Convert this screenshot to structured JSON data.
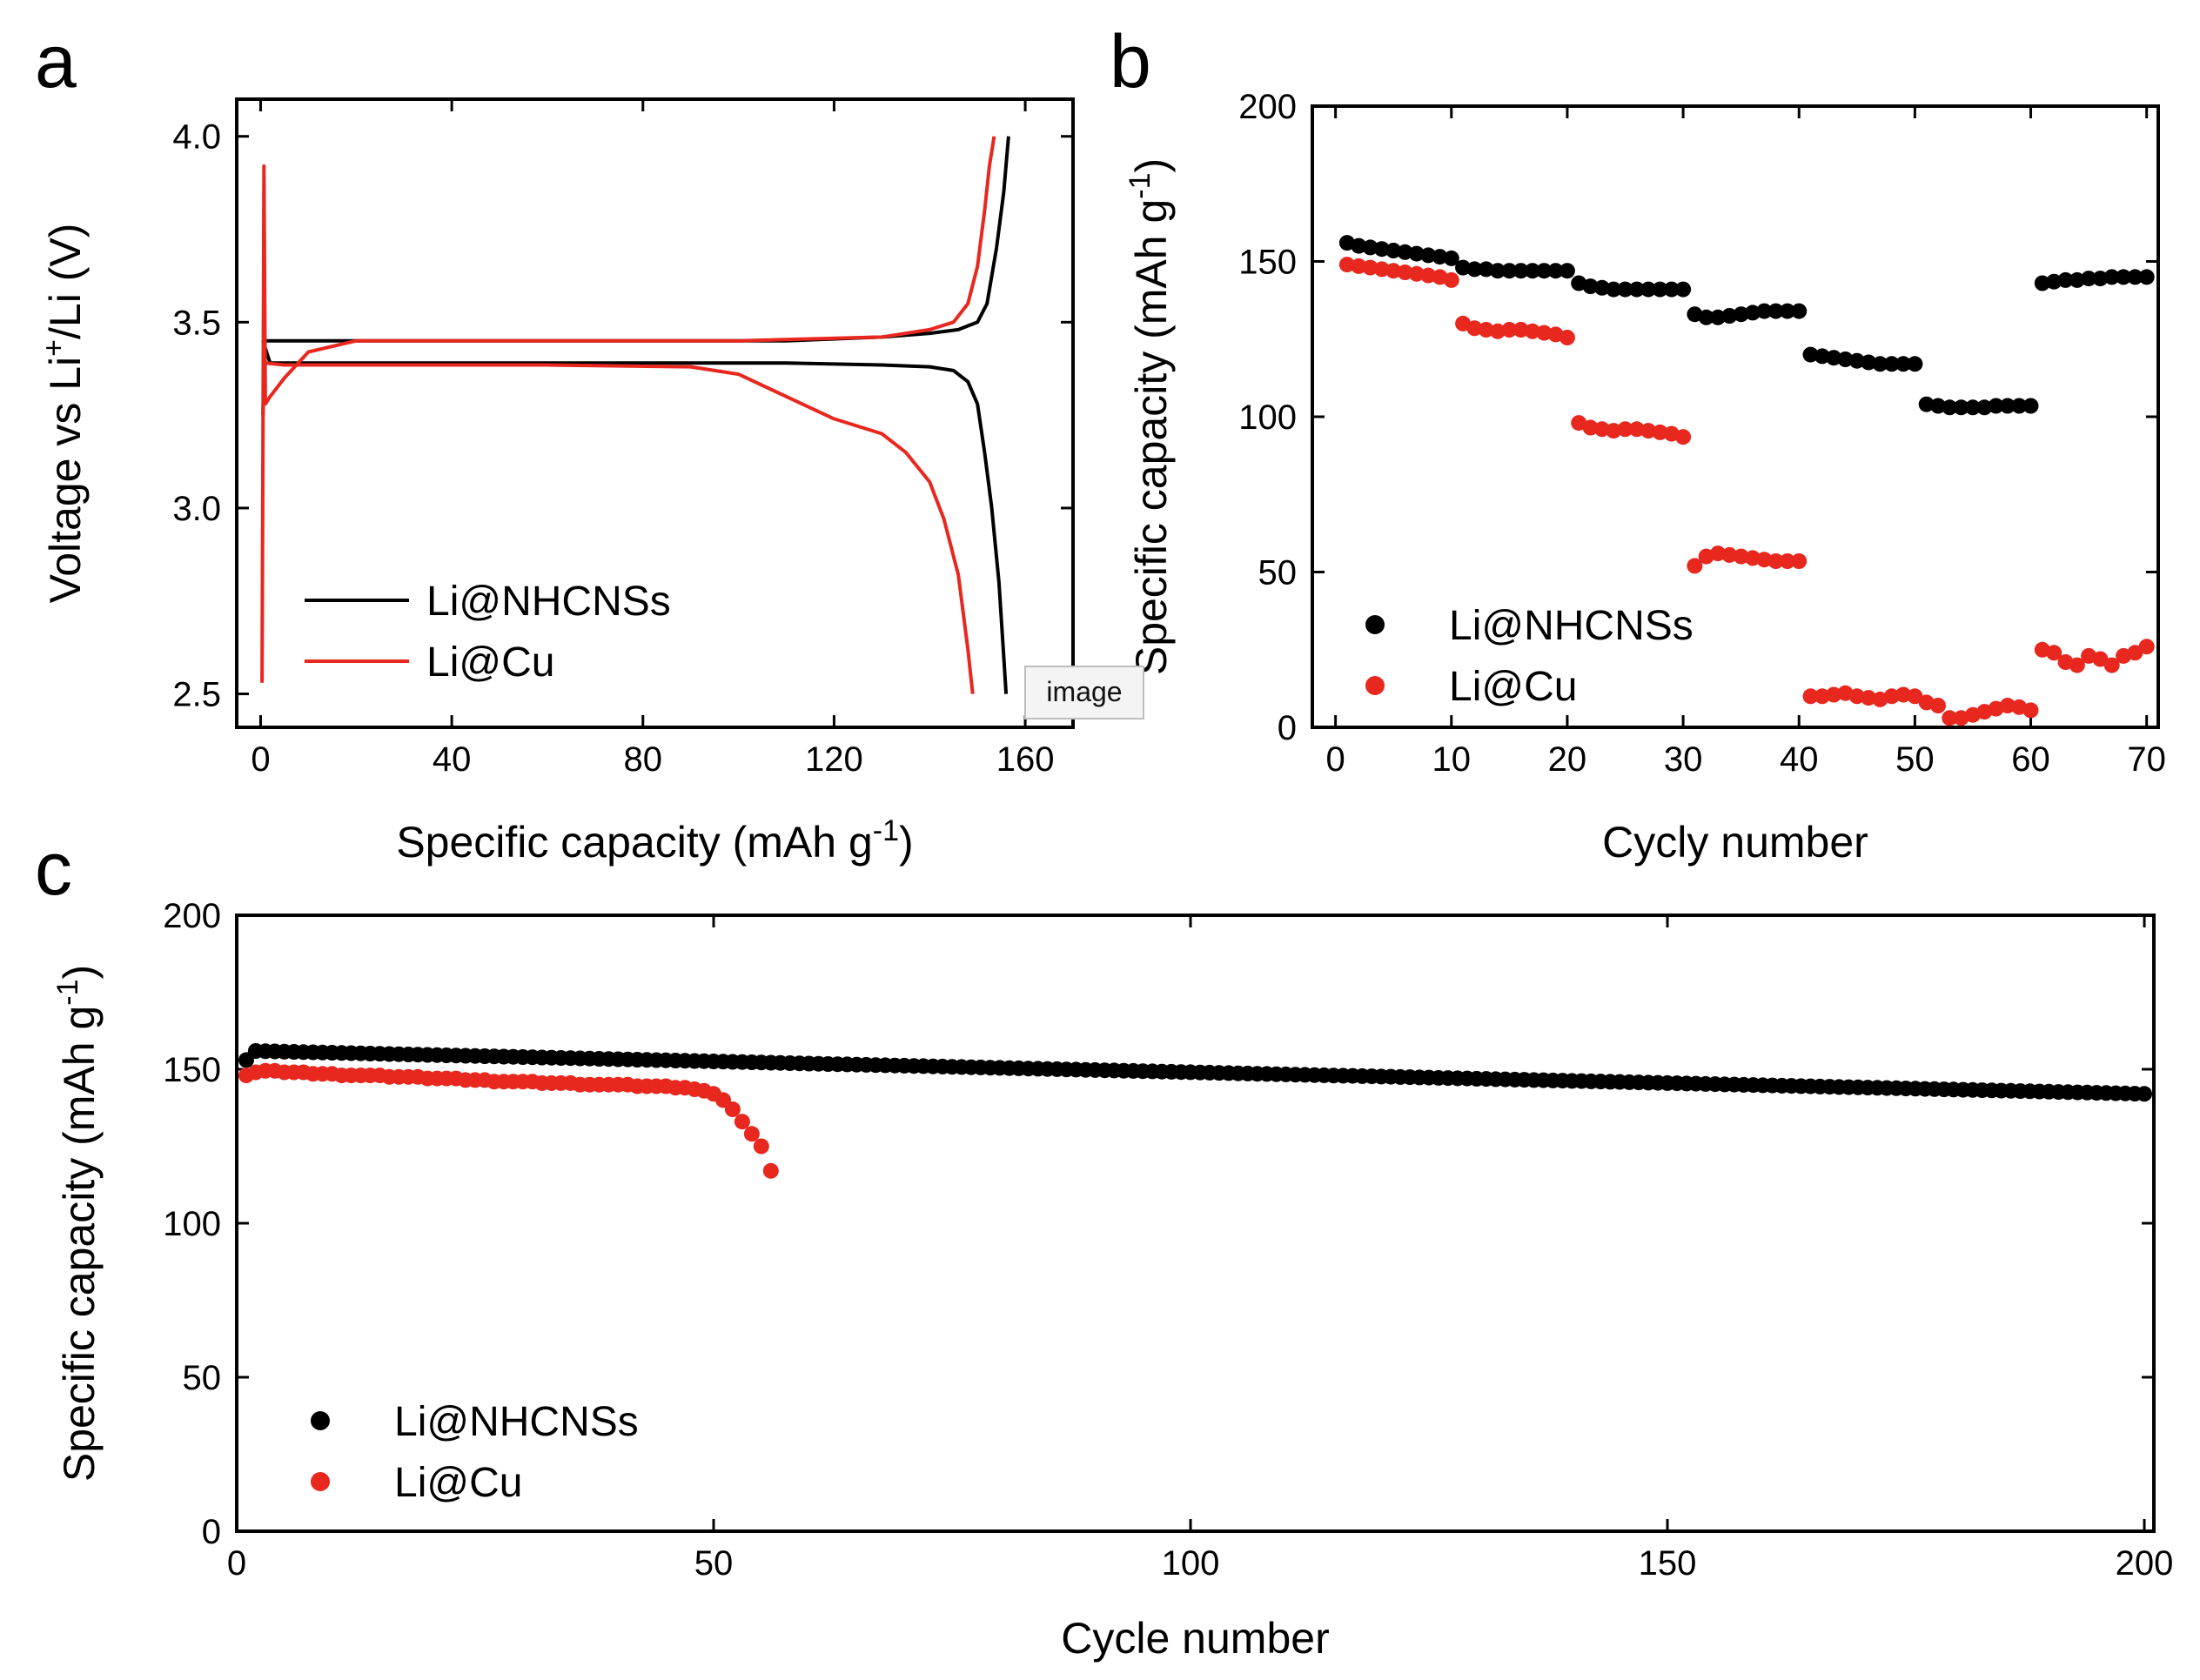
{
  "panels": {
    "a": "a",
    "b": "b",
    "c": "c"
  },
  "tooltip": "image",
  "colors": {
    "nhcns": "#000000",
    "cu": "#e8271e"
  },
  "chart_data": [
    {
      "id": "a",
      "type": "line",
      "title": "",
      "xlabel": "Specific capacity (mAh g",
      "xlabel_sup": "-1",
      "xlabel_end": ")",
      "ylabel": "Voltage vs Li",
      "ylabel_sup": "+",
      "ylabel_end": "/Li (V)",
      "xlim": [
        -5,
        170
      ],
      "ylim": [
        2.41,
        4.1
      ],
      "xticks": [
        0,
        40,
        80,
        120,
        160
      ],
      "xtick_labels": [
        "0",
        "40",
        "80",
        "120",
        "160"
      ],
      "yticks": [
        2.5,
        3.0,
        3.5,
        4.0
      ],
      "ytick_labels": [
        "2.5",
        "3.0",
        "3.5",
        "4.0"
      ],
      "legend": [
        "Li@NHCNSs",
        "Li@Cu"
      ],
      "series": [
        {
          "name": "Li@NHCNSs",
          "color_key": "nhcns",
          "segments": [
            {
              "x": [
                0.5,
                0.8,
                1.5,
                3,
                10,
                40,
                80,
                110,
                130,
                140,
                146,
                150,
                152,
                154,
                155.5,
                156.5
              ],
              "y": [
                3.25,
                3.45,
                3.45,
                3.45,
                3.45,
                3.45,
                3.45,
                3.45,
                3.46,
                3.47,
                3.48,
                3.5,
                3.55,
                3.7,
                3.85,
                4.0
              ]
            },
            {
              "x": [
                0.5,
                2,
                10,
                40,
                80,
                110,
                130,
                140,
                145,
                148,
                150,
                151.5,
                153,
                154.5,
                155.5,
                156
              ],
              "y": [
                3.45,
                3.39,
                3.39,
                3.39,
                3.39,
                3.39,
                3.385,
                3.38,
                3.37,
                3.34,
                3.28,
                3.15,
                3.0,
                2.8,
                2.6,
                2.5
              ]
            }
          ]
        },
        {
          "name": "Li@Cu",
          "color_key": "cu",
          "segments": [
            {
              "x": [
                0.3,
                0.5,
                0.7,
                1.0,
                2,
                5,
                10,
                20,
                60,
                100,
                130,
                140,
                145,
                148,
                150,
                151.5,
                152.5,
                153.5
              ],
              "y": [
                2.53,
                3.2,
                3.92,
                3.28,
                3.3,
                3.35,
                3.42,
                3.45,
                3.45,
                3.45,
                3.46,
                3.48,
                3.5,
                3.55,
                3.65,
                3.8,
                3.92,
                4.0
              ]
            },
            {
              "x": [
                1,
                5,
                20,
                60,
                90,
                100,
                110,
                120,
                130,
                135,
                140,
                143,
                146,
                148,
                149
              ],
              "y": [
                3.39,
                3.385,
                3.385,
                3.385,
                3.38,
                3.36,
                3.3,
                3.24,
                3.2,
                3.15,
                3.07,
                2.97,
                2.82,
                2.62,
                2.5
              ]
            }
          ]
        }
      ]
    },
    {
      "id": "b",
      "type": "scatter",
      "title": "",
      "xlabel": "Cycly number",
      "ylabel": "Specific capacity (mAh g",
      "ylabel_sup": "-1",
      "ylabel_end": ")",
      "xlim": [
        -2,
        71
      ],
      "ylim": [
        0,
        200
      ],
      "xticks": [
        0,
        10,
        20,
        30,
        40,
        50,
        60,
        70
      ],
      "xtick_labels": [
        "0",
        "10",
        "20",
        "30",
        "40",
        "50",
        "60",
        "70"
      ],
      "yticks": [
        0,
        50,
        100,
        150,
        200
      ],
      "ytick_labels": [
        "0",
        "50",
        "100",
        "150",
        "200"
      ],
      "legend": [
        "Li@NHCNSs",
        "Li@Cu"
      ],
      "series": [
        {
          "name": "Li@NHCNSs",
          "color_key": "nhcns",
          "x": [
            1,
            2,
            3,
            4,
            5,
            6,
            7,
            8,
            9,
            10,
            11,
            12,
            13,
            14,
            15,
            16,
            17,
            18,
            19,
            20,
            21,
            22,
            23,
            24,
            25,
            26,
            27,
            28,
            29,
            30,
            31,
            32,
            33,
            34,
            35,
            36,
            37,
            38,
            39,
            40,
            41,
            42,
            43,
            44,
            45,
            46,
            47,
            48,
            49,
            50,
            51,
            52,
            53,
            54,
            55,
            56,
            57,
            58,
            59,
            60,
            61,
            62,
            63,
            64,
            65,
            66,
            67,
            68,
            69,
            70
          ],
          "y": [
            156,
            155,
            154.5,
            154,
            153.5,
            153,
            152.5,
            152,
            151.5,
            151,
            148,
            147.5,
            147.5,
            147,
            147,
            147,
            147,
            147,
            147,
            147,
            143,
            142,
            141.5,
            141,
            141,
            141,
            141,
            141,
            141,
            141,
            133,
            132,
            132,
            132.5,
            133,
            133.5,
            134,
            134,
            134,
            134,
            120,
            119.5,
            119,
            118.5,
            118,
            117.5,
            117,
            117,
            117,
            117,
            104,
            103.5,
            103,
            103,
            103,
            103,
            103.5,
            103.5,
            103.5,
            103.5,
            143,
            143.5,
            144,
            144,
            144.5,
            144.5,
            145,
            145,
            145,
            145
          ]
        },
        {
          "name": "Li@Cu",
          "color_key": "cu",
          "x": [
            1,
            2,
            3,
            4,
            5,
            6,
            7,
            8,
            9,
            10,
            11,
            12,
            13,
            14,
            15,
            16,
            17,
            18,
            19,
            20,
            21,
            22,
            23,
            24,
            25,
            26,
            27,
            28,
            29,
            30,
            31,
            32,
            33,
            34,
            35,
            36,
            37,
            38,
            39,
            40,
            41,
            42,
            43,
            44,
            45,
            46,
            47,
            48,
            49,
            50,
            51,
            52,
            53,
            54,
            55,
            56,
            57,
            58,
            59,
            60,
            61,
            62,
            63,
            64,
            65,
            66,
            67,
            68,
            69,
            70
          ],
          "y": [
            149,
            148.5,
            148,
            147.5,
            147,
            146.5,
            146,
            145.5,
            145,
            144,
            130,
            128.5,
            128,
            127.5,
            128,
            128,
            127.5,
            127,
            126.5,
            125.5,
            98,
            96.5,
            96,
            95.5,
            96,
            96,
            95.5,
            95,
            94.5,
            93.5,
            52,
            55,
            56,
            55.5,
            55,
            54.5,
            54,
            53.5,
            53.5,
            53.5,
            10,
            10,
            10.5,
            11,
            10,
            9.5,
            9,
            10,
            10.5,
            10,
            8,
            7,
            3,
            3,
            4,
            5,
            6,
            7,
            6.5,
            5.5,
            25,
            24,
            21,
            20,
            23,
            22,
            20,
            23,
            24,
            26
          ]
        }
      ]
    },
    {
      "id": "c",
      "type": "scatter",
      "title": "",
      "xlabel": "Cycle number",
      "ylabel": "Specific capacity (mAh g",
      "ylabel_sup": "-1",
      "ylabel_end": ")",
      "xlim": [
        0,
        201
      ],
      "ylim": [
        0,
        200
      ],
      "xticks": [
        0,
        50,
        100,
        150,
        200
      ],
      "xtick_labels": [
        "0",
        "50",
        "100",
        "150",
        "200"
      ],
      "yticks": [
        0,
        50,
        100,
        150,
        200
      ],
      "ytick_labels": [
        "0",
        "50",
        "100",
        "150",
        "200"
      ],
      "legend": [
        "Li@NHCNSs",
        "Li@Cu"
      ],
      "series": [
        {
          "name": "Li@NHCNSs",
          "color_key": "nhcns",
          "x_start": 1,
          "x_end": 200,
          "y_start": 156,
          "y_end": 142,
          "first_point": 153
        },
        {
          "name": "Li@Cu",
          "color_key": "cu",
          "x": [
            1,
            2,
            3,
            4,
            5,
            6,
            7,
            8,
            9,
            10,
            11,
            12,
            13,
            14,
            15,
            16,
            17,
            18,
            19,
            20,
            21,
            22,
            23,
            24,
            25,
            26,
            27,
            28,
            29,
            30,
            31,
            32,
            33,
            34,
            35,
            36,
            37,
            38,
            39,
            40,
            41,
            42,
            43,
            44,
            45,
            46,
            47,
            48,
            49,
            50,
            51,
            52,
            53,
            54,
            55,
            56
          ],
          "y": [
            148,
            149,
            149.5,
            149.5,
            149,
            149,
            149,
            148.5,
            148.5,
            148.5,
            148,
            148,
            148,
            148,
            148,
            147.5,
            147.5,
            147.5,
            147.5,
            147,
            147,
            147,
            147,
            146.5,
            146.5,
            146.5,
            146,
            146,
            146,
            146,
            146,
            145.5,
            145.5,
            145.5,
            145.5,
            145,
            145,
            145,
            145,
            145,
            145,
            144.5,
            144.5,
            144.5,
            144.5,
            144,
            144,
            143.5,
            143,
            142,
            140,
            137,
            133,
            129,
            125,
            117
          ]
        }
      ]
    }
  ]
}
